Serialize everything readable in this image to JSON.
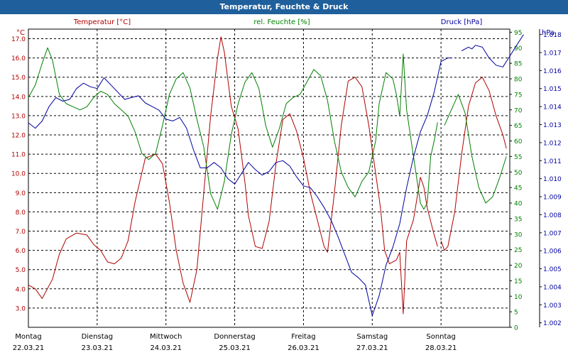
{
  "title": "Temperatur, Feuchte & Druck",
  "chart_data": {
    "type": "line",
    "colors": {
      "temp": "#b00000",
      "hum": "#008000",
      "press": "#0000a0",
      "title_bg": "#1f5f9b"
    },
    "axes": {
      "temp": {
        "unit": "°C",
        "label": "Temperatur [°C]",
        "min": 2.0,
        "max": 17.5,
        "ticks": [
          "3.0",
          "4.0",
          "5.0",
          "6.0",
          "7.0",
          "8.0",
          "9.0",
          "10.0",
          "11.0",
          "12.0",
          "13.0",
          "14.0",
          "15.0",
          "16.0",
          "17.0"
        ],
        "tick_values": [
          3,
          4,
          5,
          6,
          7,
          8,
          9,
          10,
          11,
          12,
          13,
          14,
          15,
          16,
          17
        ]
      },
      "hum": {
        "unit": "%",
        "label": "rel. Feuchte [%]",
        "min": 0,
        "max": 96,
        "ticks": [
          "0",
          "5",
          "10",
          "15",
          "20",
          "25",
          "30",
          "35",
          "40",
          "45",
          "50",
          "55",
          "60",
          "65",
          "70",
          "75",
          "80",
          "85",
          "90",
          "95"
        ],
        "tick_values": [
          0,
          5,
          10,
          15,
          20,
          25,
          30,
          35,
          40,
          45,
          50,
          55,
          60,
          65,
          70,
          75,
          80,
          85,
          90,
          95
        ]
      },
      "press": {
        "unit": "hPa",
        "label": "Druck [hPa]",
        "min": 1001.75,
        "max": 1018.3,
        "ticks": [
          "1.002",
          "1.003",
          "1.004",
          "1.005",
          "1.006",
          "1.007",
          "1.008",
          "1.009",
          "1.010",
          "1.011",
          "1.012",
          "1.013",
          "1.014",
          "1.015",
          "1.016",
          "1.017",
          "1.018"
        ],
        "tick_values": [
          1002,
          1003,
          1004,
          1005,
          1006,
          1007,
          1008,
          1009,
          1010,
          1011,
          1012,
          1013,
          1014,
          1015,
          1016,
          1017,
          1018
        ]
      }
    },
    "x": {
      "min": 0,
      "max": 7.0,
      "days": [
        {
          "name": "Montag",
          "date": "22.03.21",
          "x": 0
        },
        {
          "name": "Dienstag",
          "date": "23.03.21",
          "x": 1
        },
        {
          "name": "Mittwoch",
          "date": "24.03.21",
          "x": 2
        },
        {
          "name": "Donnerstag",
          "date": "25.03.21",
          "x": 3
        },
        {
          "name": "Freitag",
          "date": "26.03.21",
          "x": 4
        },
        {
          "name": "Samstag",
          "date": "27.03.21",
          "x": 5
        },
        {
          "name": "Sonntag",
          "date": "28.03.21",
          "x": 6
        }
      ],
      "grid": [
        1,
        2,
        3,
        4,
        5,
        6
      ]
    },
    "series": [
      {
        "name": "Temperatur",
        "axis": "temp",
        "segments": [
          [
            [
              0,
              4.2
            ],
            [
              0.1,
              4.0
            ],
            [
              0.2,
              3.5
            ],
            [
              0.35,
              4.5
            ],
            [
              0.45,
              5.8
            ],
            [
              0.55,
              6.6
            ],
            [
              0.7,
              6.9
            ],
            [
              0.85,
              6.8
            ],
            [
              0.95,
              6.3
            ],
            [
              1.05,
              6.0
            ],
            [
              1.15,
              5.4
            ],
            [
              1.25,
              5.3
            ],
            [
              1.35,
              5.6
            ],
            [
              1.45,
              6.5
            ],
            [
              1.55,
              8.5
            ],
            [
              1.7,
              10.8
            ],
            [
              1.85,
              11.0
            ],
            [
              1.95,
              10.5
            ],
            [
              2.05,
              8.5
            ],
            [
              2.15,
              6.0
            ],
            [
              2.25,
              4.3
            ],
            [
              2.35,
              3.3
            ],
            [
              2.45,
              5.0
            ],
            [
              2.55,
              9.0
            ],
            [
              2.65,
              13.0
            ],
            [
              2.75,
              16.0
            ],
            [
              2.8,
              17.1
            ],
            [
              2.85,
              16.3
            ],
            [
              2.95,
              13.5
            ],
            [
              3.05,
              12.3
            ],
            [
              3.15,
              9.5
            ],
            [
              3.2,
              7.8
            ],
            [
              3.3,
              6.2
            ],
            [
              3.4,
              6.1
            ],
            [
              3.5,
              7.5
            ],
            [
              3.6,
              10.5
            ],
            [
              3.7,
              12.8
            ],
            [
              3.8,
              13.1
            ],
            [
              3.9,
              12.2
            ],
            [
              4.0,
              10.8
            ],
            [
              4.1,
              9.0
            ],
            [
              4.2,
              7.6
            ],
            [
              4.3,
              6.2
            ],
            [
              4.35,
              5.9
            ],
            [
              4.45,
              9.0
            ],
            [
              4.55,
              12.5
            ],
            [
              4.65,
              14.8
            ],
            [
              4.75,
              15.0
            ],
            [
              4.85,
              14.5
            ],
            [
              4.95,
              12.5
            ],
            [
              5.05,
              10.0
            ],
            [
              5.12,
              8.2
            ],
            [
              5.18,
              6.0
            ],
            [
              5.25,
              5.3
            ],
            [
              5.35,
              5.5
            ],
            [
              5.4,
              5.9
            ],
            [
              5.45,
              2.7
            ],
            [
              5.5,
              6.5
            ],
            [
              5.6,
              7.6
            ],
            [
              5.7,
              9.8
            ],
            [
              5.75,
              9.3
            ],
            [
              5.8,
              8.2
            ],
            [
              5.9,
              6.8
            ],
            [
              5.95,
              6.2
            ]
          ],
          [
            [
              6.0,
              6.5
            ],
            [
              6.05,
              6.0
            ],
            [
              6.1,
              6.2
            ],
            [
              6.2,
              8.0
            ],
            [
              6.3,
              11.0
            ],
            [
              6.4,
              13.5
            ],
            [
              6.5,
              14.7
            ],
            [
              6.6,
              15.0
            ],
            [
              6.7,
              14.3
            ],
            [
              6.8,
              13.0
            ],
            [
              6.9,
              12.0
            ],
            [
              6.95,
              11.3
            ]
          ]
        ]
      },
      {
        "name": "rel. Feuchte",
        "axis": "hum",
        "segments": [
          [
            [
              0,
              74
            ],
            [
              0.1,
              78
            ],
            [
              0.2,
              85
            ],
            [
              0.28,
              90
            ],
            [
              0.35,
              86
            ],
            [
              0.45,
              75
            ],
            [
              0.55,
              72
            ],
            [
              0.65,
              71
            ],
            [
              0.75,
              70
            ],
            [
              0.85,
              71
            ],
            [
              0.95,
              74
            ],
            [
              1.05,
              76
            ],
            [
              1.15,
              75
            ],
            [
              1.25,
              72
            ],
            [
              1.35,
              70
            ],
            [
              1.45,
              68
            ],
            [
              1.55,
              63
            ],
            [
              1.65,
              56
            ],
            [
              1.75,
              54
            ],
            [
              1.85,
              56
            ],
            [
              1.95,
              65
            ],
            [
              2.05,
              75
            ],
            [
              2.15,
              80
            ],
            [
              2.25,
              82
            ],
            [
              2.35,
              77
            ],
            [
              2.45,
              67
            ],
            [
              2.55,
              58
            ],
            [
              2.65,
              43
            ],
            [
              2.75,
              38
            ],
            [
              2.85,
              47
            ],
            [
              2.95,
              62
            ],
            [
              3.05,
              72
            ],
            [
              3.15,
              79
            ],
            [
              3.25,
              82
            ],
            [
              3.35,
              77
            ],
            [
              3.45,
              65
            ],
            [
              3.55,
              58
            ],
            [
              3.65,
              64
            ],
            [
              3.75,
              72
            ],
            [
              3.85,
              74
            ],
            [
              3.95,
              75
            ],
            [
              4.05,
              79
            ],
            [
              4.15,
              83
            ],
            [
              4.25,
              81
            ],
            [
              4.35,
              73
            ],
            [
              4.45,
              60
            ],
            [
              4.55,
              50
            ],
            [
              4.65,
              45
            ],
            [
              4.75,
              42
            ],
            [
              4.85,
              47
            ],
            [
              4.95,
              50
            ],
            [
              5.05,
              60
            ],
            [
              5.1,
              72
            ],
            [
              5.2,
              82
            ],
            [
              5.3,
              80
            ],
            [
              5.35,
              75
            ],
            [
              5.4,
              68
            ],
            [
              5.45,
              88
            ],
            [
              5.5,
              70
            ],
            [
              5.6,
              55
            ],
            [
              5.7,
              40
            ],
            [
              5.75,
              38
            ],
            [
              5.8,
              40
            ],
            [
              5.85,
              55
            ],
            [
              5.9,
              60
            ],
            [
              5.95,
              66
            ]
          ],
          [
            [
              6.05,
              65
            ],
            [
              6.15,
              70
            ],
            [
              6.25,
              75
            ],
            [
              6.35,
              69
            ],
            [
              6.45,
              55
            ],
            [
              6.55,
              45
            ],
            [
              6.65,
              40
            ],
            [
              6.75,
              42
            ],
            [
              6.85,
              48
            ],
            [
              6.95,
              55
            ]
          ]
        ]
      },
      {
        "name": "Druck",
        "axis": "press",
        "segments": [
          [
            [
              0,
              1013.1
            ],
            [
              0.1,
              1012.8
            ],
            [
              0.2,
              1013.2
            ],
            [
              0.3,
              1014.0
            ],
            [
              0.4,
              1014.5
            ],
            [
              0.5,
              1014.3
            ],
            [
              0.6,
              1014.4
            ],
            [
              0.7,
              1015.0
            ],
            [
              0.8,
              1015.3
            ],
            [
              0.9,
              1015.1
            ],
            [
              1.0,
              1015.0
            ],
            [
              1.1,
              1015.6
            ],
            [
              1.2,
              1015.2
            ],
            [
              1.3,
              1014.8
            ],
            [
              1.4,
              1014.4
            ],
            [
              1.5,
              1014.5
            ],
            [
              1.6,
              1014.6
            ],
            [
              1.7,
              1014.2
            ],
            [
              1.8,
              1014.0
            ],
            [
              1.9,
              1013.8
            ],
            [
              2.0,
              1013.3
            ],
            [
              2.1,
              1013.2
            ],
            [
              2.2,
              1013.4
            ],
            [
              2.3,
              1012.8
            ],
            [
              2.4,
              1011.6
            ],
            [
              2.5,
              1010.6
            ],
            [
              2.6,
              1010.6
            ],
            [
              2.7,
              1010.9
            ],
            [
              2.8,
              1010.6
            ],
            [
              2.9,
              1010.0
            ],
            [
              3.0,
              1009.7
            ],
            [
              3.1,
              1010.3
            ],
            [
              3.2,
              1010.9
            ],
            [
              3.3,
              1010.5
            ],
            [
              3.4,
              1010.2
            ],
            [
              3.5,
              1010.4
            ],
            [
              3.6,
              1010.9
            ],
            [
              3.7,
              1011.0
            ],
            [
              3.8,
              1010.7
            ],
            [
              3.9,
              1010.1
            ],
            [
              4.0,
              1009.6
            ],
            [
              4.1,
              1009.5
            ],
            [
              4.2,
              1009.0
            ],
            [
              4.3,
              1008.4
            ],
            [
              4.4,
              1007.7
            ],
            [
              4.5,
              1006.8
            ],
            [
              4.6,
              1005.8
            ],
            [
              4.7,
              1004.8
            ],
            [
              4.8,
              1004.5
            ],
            [
              4.9,
              1004.1
            ],
            [
              5.0,
              1002.4
            ],
            [
              5.1,
              1003.5
            ],
            [
              5.2,
              1005.2
            ],
            [
              5.3,
              1006.2
            ],
            [
              5.4,
              1007.5
            ],
            [
              5.5,
              1009.5
            ],
            [
              5.6,
              1011.2
            ],
            [
              5.7,
              1012.6
            ],
            [
              5.8,
              1013.5
            ],
            [
              5.9,
              1014.8
            ],
            [
              6.0,
              1016.5
            ],
            [
              6.1,
              1016.7
            ],
            [
              6.15,
              1016.7
            ]
          ],
          [
            [
              6.3,
              1017.1
            ],
            [
              6.4,
              1017.3
            ],
            [
              6.45,
              1017.2
            ],
            [
              6.5,
              1017.4
            ],
            [
              6.6,
              1017.3
            ],
            [
              6.7,
              1016.7
            ],
            [
              6.8,
              1016.3
            ],
            [
              6.9,
              1016.2
            ],
            [
              7.0,
              1016.8
            ],
            [
              7.1,
              1017.4
            ],
            [
              7.2,
              1018.0
            ]
          ]
        ]
      }
    ]
  }
}
